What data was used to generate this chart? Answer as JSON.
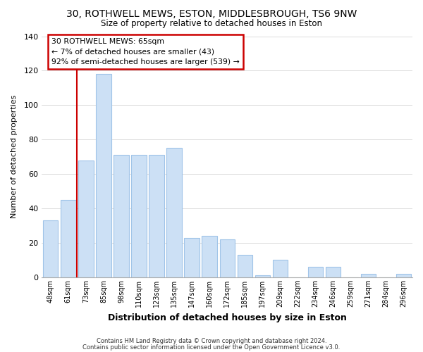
{
  "title": "30, ROTHWELL MEWS, ESTON, MIDDLESBROUGH, TS6 9NW",
  "subtitle": "Size of property relative to detached houses in Eston",
  "xlabel": "Distribution of detached houses by size in Eston",
  "ylabel": "Number of detached properties",
  "bar_labels": [
    "48sqm",
    "61sqm",
    "73sqm",
    "85sqm",
    "98sqm",
    "110sqm",
    "123sqm",
    "135sqm",
    "147sqm",
    "160sqm",
    "172sqm",
    "185sqm",
    "197sqm",
    "209sqm",
    "222sqm",
    "234sqm",
    "246sqm",
    "259sqm",
    "271sqm",
    "284sqm",
    "296sqm"
  ],
  "bar_values": [
    33,
    45,
    68,
    118,
    71,
    71,
    71,
    75,
    23,
    24,
    22,
    13,
    1,
    10,
    0,
    6,
    6,
    0,
    2,
    0,
    2
  ],
  "bar_color": "#cce0f5",
  "bar_edge_color": "#a0c4e8",
  "property_line_color": "#cc0000",
  "annotation_title": "30 ROTHWELL MEWS: 65sqm",
  "annotation_line1": "← 7% of detached houses are smaller (43)",
  "annotation_line2": "92% of semi-detached houses are larger (539) →",
  "annotation_box_color": "#ffffff",
  "annotation_box_edge_color": "#cc0000",
  "ylim": [
    0,
    140
  ],
  "yticks": [
    0,
    20,
    40,
    60,
    80,
    100,
    120,
    140
  ],
  "footnote1": "Contains HM Land Registry data © Crown copyright and database right 2024.",
  "footnote2": "Contains public sector information licensed under the Open Government Licence v3.0."
}
